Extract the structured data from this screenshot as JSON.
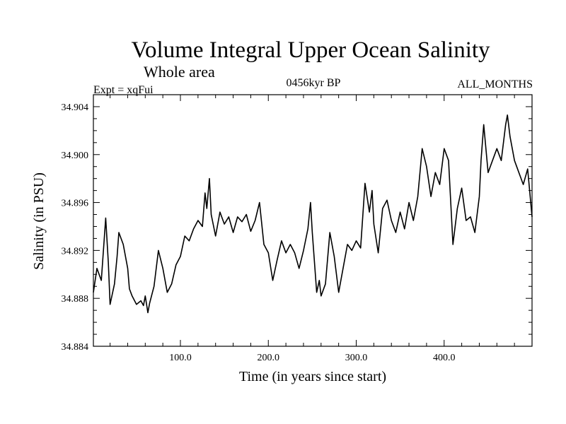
{
  "chart_data": {
    "type": "line",
    "title": "Volume Integral Upper Ocean Salinity",
    "subtitle": "Whole area",
    "left_label": "Expt = xqFui",
    "center_label": "0456kyr BP",
    "right_label": "ALL_MONTHS",
    "xlabel": "Time (in years since start)",
    "ylabel": "Salinity (in PSU)",
    "xlim": [
      1,
      500
    ],
    "ylim": [
      34.884,
      34.905
    ],
    "xticks": [
      100,
      200,
      300,
      400
    ],
    "xtick_labels": [
      "100.0",
      "200.0",
      "300.0",
      "400.0"
    ],
    "yticks": [
      34.884,
      34.888,
      34.892,
      34.896,
      34.9,
      34.904
    ],
    "ytick_labels": [
      "34.884",
      "34.888",
      "34.892",
      "34.896",
      "34.900",
      "34.904"
    ],
    "series": [
      {
        "name": "salinity",
        "color": "#000000",
        "x": [
          1,
          5,
          10,
          15,
          18,
          20,
          25,
          28,
          30,
          35,
          40,
          42,
          45,
          50,
          55,
          58,
          60,
          63,
          65,
          70,
          75,
          80,
          85,
          90,
          95,
          100,
          105,
          110,
          115,
          120,
          125,
          128,
          130,
          133,
          135,
          140,
          145,
          150,
          155,
          160,
          165,
          170,
          175,
          180,
          185,
          190,
          195,
          200,
          205,
          210,
          215,
          220,
          225,
          230,
          235,
          240,
          245,
          248,
          250,
          255,
          258,
          260,
          265,
          270,
          275,
          280,
          285,
          290,
          295,
          300,
          305,
          310,
          315,
          318,
          320,
          325,
          330,
          335,
          340,
          345,
          350,
          355,
          360,
          365,
          370,
          375,
          380,
          385,
          390,
          395,
          400,
          405,
          410,
          415,
          420,
          425,
          430,
          435,
          440,
          442,
          445,
          450,
          455,
          460,
          465,
          470,
          472,
          475,
          480,
          485,
          490,
          495,
          500
        ],
        "y": [
          34.8885,
          34.8905,
          34.8895,
          34.8947,
          34.891,
          34.8875,
          34.8892,
          34.8915,
          34.8935,
          34.8925,
          34.8905,
          34.8888,
          34.8882,
          34.8875,
          34.8878,
          34.8874,
          34.8882,
          34.8868,
          34.8876,
          34.889,
          34.892,
          34.8905,
          34.8885,
          34.8892,
          34.8908,
          34.8915,
          34.8932,
          34.8928,
          34.8938,
          34.8945,
          34.894,
          34.8968,
          34.8955,
          34.898,
          34.895,
          34.8932,
          34.8952,
          34.8942,
          34.8948,
          34.8935,
          34.8948,
          34.8944,
          34.895,
          34.8936,
          34.8945,
          34.896,
          34.8925,
          34.8918,
          34.8895,
          34.8912,
          34.8928,
          34.8918,
          34.8925,
          34.8918,
          34.8905,
          34.892,
          34.8938,
          34.896,
          34.8935,
          34.8885,
          34.8895,
          34.8882,
          34.8892,
          34.8935,
          34.8915,
          34.8885,
          34.8905,
          34.8925,
          34.892,
          34.8928,
          34.8922,
          34.8976,
          34.8952,
          34.897,
          34.8942,
          34.8918,
          34.8955,
          34.8962,
          34.8945,
          34.8935,
          34.8952,
          34.8938,
          34.896,
          34.8945,
          34.8965,
          34.9005,
          34.899,
          34.8965,
          34.8985,
          34.8975,
          34.9005,
          34.8995,
          34.8925,
          34.8955,
          34.8972,
          34.8945,
          34.8948,
          34.8935,
          34.8965,
          34.8995,
          34.9025,
          34.8985,
          34.8995,
          34.9005,
          34.8995,
          34.9025,
          34.9033,
          34.9015,
          34.8995,
          34.8985,
          34.8975,
          34.8988,
          34.8948
        ]
      }
    ]
  }
}
